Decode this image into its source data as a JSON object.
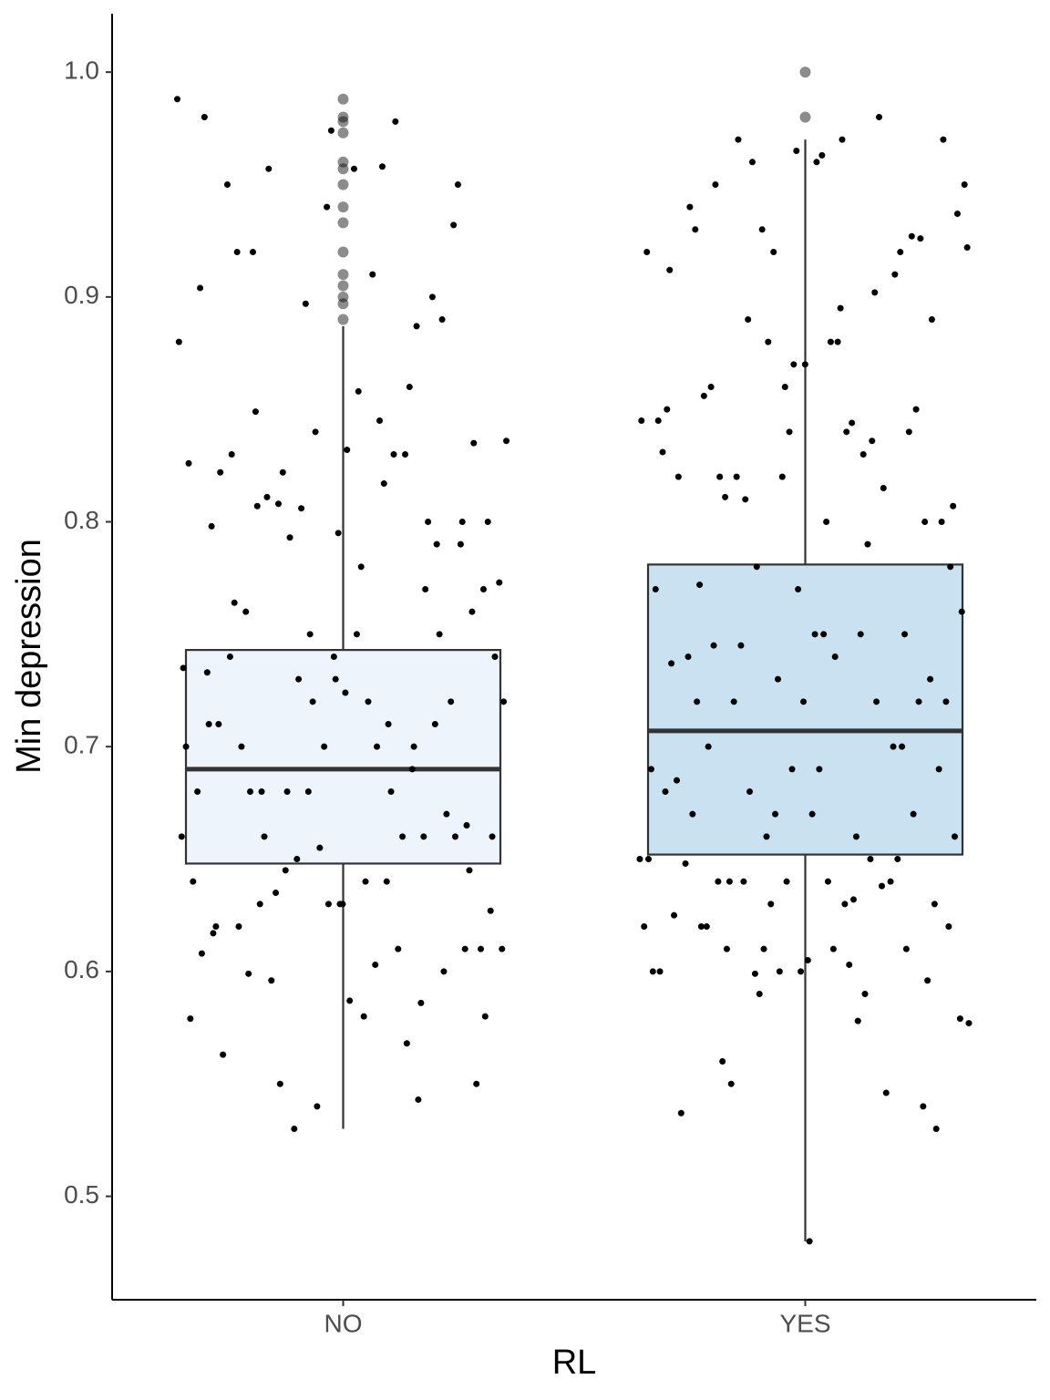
{
  "chart_data": {
    "type": "box",
    "x_label": "RL",
    "y_label": "Min depression",
    "categories": [
      "NO",
      "YES"
    ],
    "colors": [
      "#edf4fc",
      "#c9e1f0"
    ],
    "ylim": [
      0.454,
      1.026
    ],
    "yticks": [
      0.5,
      0.6,
      0.7,
      0.8,
      0.9,
      {
        "value": 1,
        "label": "1.0"
      }
    ],
    "boxes": [
      {
        "whisker_low": 0.53,
        "q1": 0.648,
        "median": 0.69,
        "q3": 0.743,
        "whisker_high": 0.887
      },
      {
        "whisker_low": 0.48,
        "q1": 0.652,
        "median": 0.707,
        "q3": 0.781,
        "whisker_high": 0.97
      }
    ],
    "outliers": [
      [
        0.89,
        0.897,
        0.9,
        0.905,
        0.91,
        0.92,
        0.933,
        0.94,
        0.95,
        0.957,
        0.96,
        0.973,
        0.978,
        0.98,
        0.988
      ],
      [
        0.98,
        1.0
      ]
    ],
    "points": [
      [
        0.988,
        0.958,
        0.849,
        0.79,
        0.74,
        0.733,
        0.69,
        0.645,
        0.627,
        0.58,
        0.92,
        0.89,
        0.84,
        0.826,
        0.83,
        0.811,
        0.76,
        0.724,
        0.71,
        0.66,
        0.65,
        0.61,
        0.603,
        0.599,
        0.932,
        0.94,
        0.904,
        0.83,
        0.808,
        0.77,
        0.75,
        0.74,
        0.71,
        0.68,
        0.66,
        0.64,
        0.63,
        0.61,
        0.795,
        0.798,
        0.887,
        0.793,
        0.74,
        0.72,
        0.7,
        0.67,
        0.655,
        0.64,
        0.61,
        0.596,
        0.55,
        0.587,
        0.563,
        0.8,
        0.806,
        0.836,
        0.845,
        0.92,
        0.95,
        0.974,
        0.98,
        0.86,
        0.822,
        0.8,
        0.78,
        0.764,
        0.75,
        0.72,
        0.7,
        0.68,
        0.66,
        0.645,
        0.63,
        0.62,
        0.586,
        0.53,
        0.773,
        0.91,
        0.76,
        0.72,
        0.7,
        0.68,
        0.66,
        0.635,
        0.61,
        0.957,
        0.95,
        0.9,
        0.897,
        0.88,
        0.817,
        0.807,
        0.8,
        0.73,
        0.71,
        0.7,
        0.68,
        0.66,
        0.64,
        0.62,
        0.6,
        0.54,
        0.579,
        0.978,
        0.957,
        0.835,
        0.832,
        0.822,
        0.77,
        0.73,
        0.72,
        0.7,
        0.68,
        0.66,
        0.63,
        0.608,
        0.568,
        0.55,
        0.58,
        0.858,
        0.83,
        0.79,
        0.75,
        0.735,
        0.71,
        0.68,
        0.665,
        0.63,
        0.617,
        0.543
      ],
      [
        0.93,
        0.922,
        0.895,
        0.745,
        0.72,
        0.69,
        0.68,
        0.65,
        0.64,
        0.62,
        0.963,
        0.93,
        0.92,
        0.92,
        0.92,
        0.844,
        0.811,
        0.73,
        0.72,
        0.685,
        0.638,
        0.599,
        0.579,
        0.61,
        0.62,
        0.927,
        0.86,
        0.845,
        0.83,
        0.82,
        0.8,
        0.75,
        0.74,
        0.7,
        0.66,
        0.65,
        0.63,
        0.64,
        0.54,
        0.965,
        0.912,
        0.902,
        0.89,
        0.807,
        0.8,
        0.772,
        0.75,
        0.73,
        0.69,
        0.66,
        0.64,
        0.63,
        0.605,
        0.537,
        0.546,
        0.59,
        0.95,
        0.88,
        0.86,
        0.85,
        0.84,
        0.831,
        0.79,
        0.745,
        0.72,
        0.69,
        0.67,
        0.65,
        0.63,
        0.62,
        0.603,
        0.56,
        0.596,
        0.6,
        0.625,
        0.98,
        0.96,
        0.937,
        0.88,
        0.856,
        0.84,
        0.82,
        0.77,
        0.75,
        0.72,
        0.69,
        0.67,
        0.648,
        0.64,
        0.61,
        0.577,
        0.97,
        0.95,
        0.926,
        0.87,
        0.85,
        0.836,
        0.81,
        0.78,
        0.75,
        0.72,
        0.7,
        0.67,
        0.65,
        0.632,
        0.61,
        0.89,
        0.87,
        0.82,
        0.815,
        0.78,
        0.76,
        0.74,
        0.7,
        0.67,
        0.64,
        0.6,
        0.59,
        0.97,
        0.97,
        0.96,
        0.94,
        0.91,
        0.88,
        0.845,
        0.84,
        0.82,
        0.8,
        0.77,
        0.737,
        0.72,
        0.68,
        0.66,
        0.64,
        0.62,
        0.61,
        0.6,
        0.6,
        0.578,
        0.55,
        0.53,
        0.48
      ]
    ]
  }
}
